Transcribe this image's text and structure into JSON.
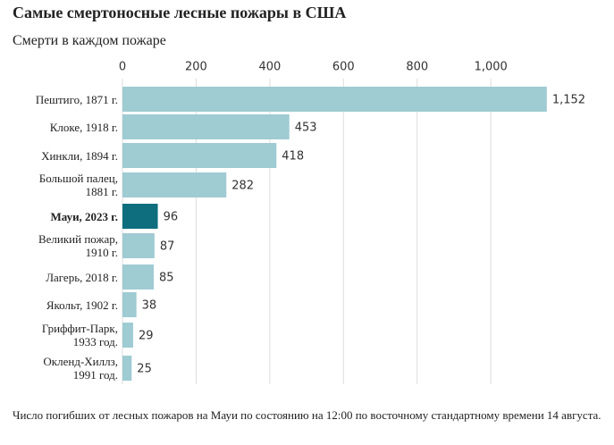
{
  "chart_data": {
    "type": "barh",
    "title": "Самые смертоносные лесные пожары в США",
    "subtitle": "Смерти в каждом пожаре",
    "categories": [
      "Пештиго, 1871 г.",
      "Клоке, 1918 г.",
      "Хинкли, 1894 г.",
      "Большой палец,\n1881 г.",
      "Мауи, 2023 г.",
      "Великий пожар,\n1910 г.",
      "Лагерь, 2018 г.",
      "Якольт, 1902 г.",
      "Гриффит-Парк,\n1933 год.",
      "Окленд-Хиллз,\n1991 год."
    ],
    "values": [
      1152,
      453,
      418,
      282,
      96,
      87,
      85,
      38,
      29,
      25
    ],
    "value_labels": [
      "1,152",
      "453",
      "418",
      "282",
      "96",
      "87",
      "85",
      "38",
      "29",
      "25"
    ],
    "color": "#9fcbd3",
    "highlight_color": "#0e6e7e",
    "highlight_index": 4,
    "xlim": [
      0,
      1150
    ],
    "xticks": [
      0,
      200,
      400,
      600,
      800,
      {
        "value": 1000,
        "label": "1,000"
      }
    ],
    "grid": true,
    "note": "Число погибших от лесных пожаров на Мауи по состоянию на 12:00 по восточному стандартному времени 14 августа."
  }
}
